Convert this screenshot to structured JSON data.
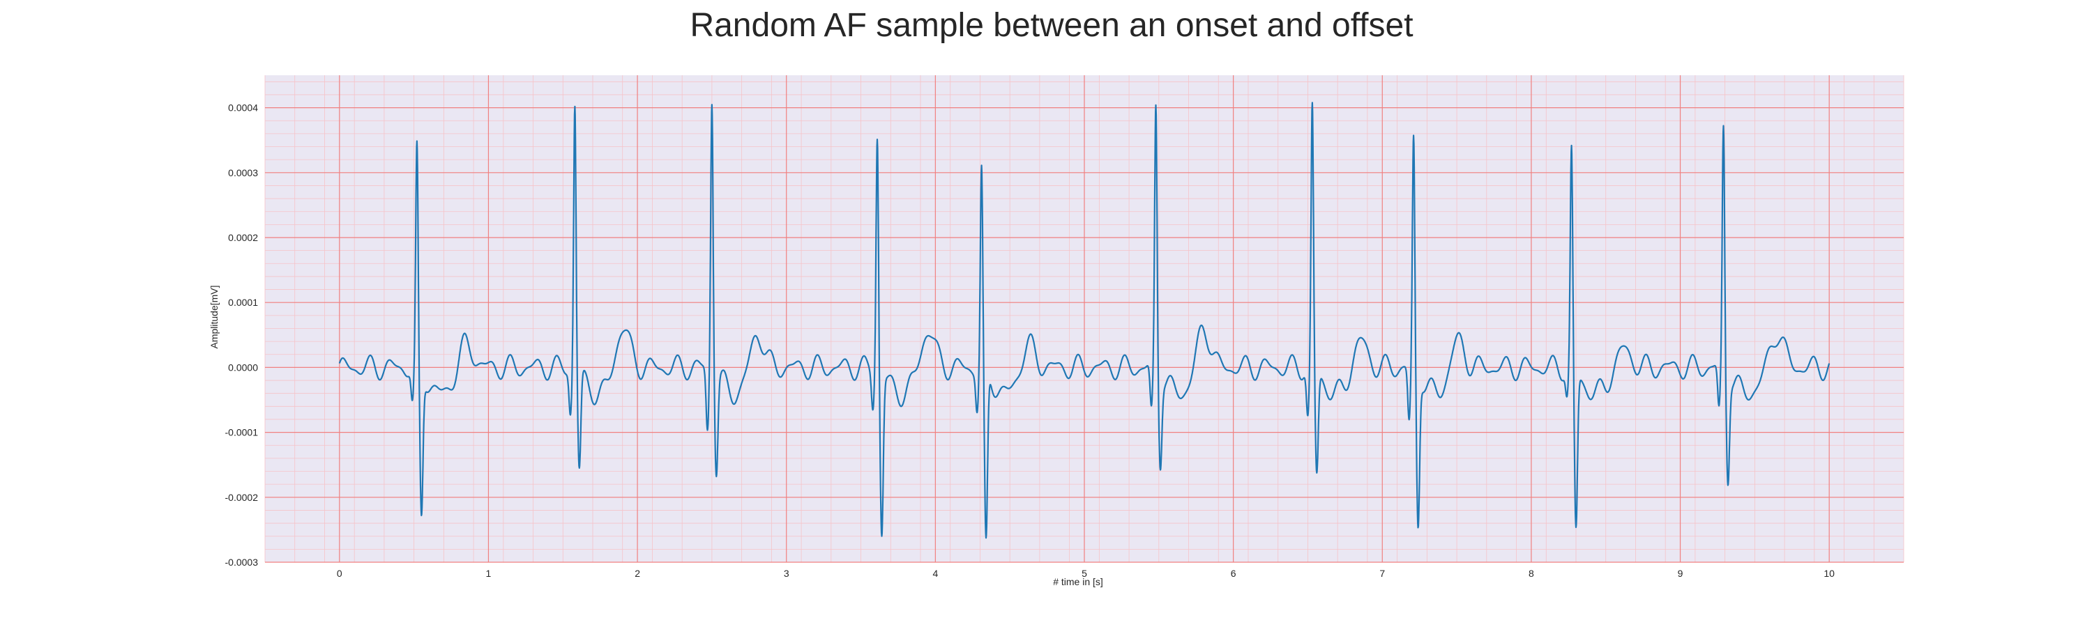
{
  "chart_data": {
    "type": "line",
    "title": "Random AF sample between an onset and offset",
    "xlabel": "# time in [s]",
    "ylabel": "Amplitude[mV]",
    "xlim": [
      -0.5,
      10.5
    ],
    "ylim": [
      -0.0003,
      0.00045
    ],
    "x_ticks": [
      0,
      1,
      2,
      3,
      4,
      5,
      6,
      7,
      8,
      9,
      10
    ],
    "x_tick_labels": [
      "0",
      "1",
      "2",
      "3",
      "4",
      "5",
      "6",
      "7",
      "8",
      "9",
      "10"
    ],
    "y_ticks": [
      -0.0003,
      -0.0002,
      -0.0001,
      0.0,
      0.0001,
      0.0002,
      0.0003,
      0.0004
    ],
    "y_tick_labels": [
      "-0.0003",
      "-0.0002",
      "-0.0001",
      "0.0000",
      "0.0001",
      "0.0002",
      "0.0003",
      "0.0004"
    ],
    "grid": "major and minor",
    "colors": {
      "line": "#1f77b4",
      "plot_background": "#eae7f3",
      "major_grid": "#f08080",
      "minor_grid": "#f6c3c8"
    },
    "beats": [
      {
        "t": 0.52,
        "r": 0.000337,
        "q": -5.2e-05,
        "s": -0.00022
      },
      {
        "t": 1.58,
        "r": 0.000413,
        "q": -6.5e-05,
        "s": -0.000148
      },
      {
        "t": 2.5,
        "r": 0.000422,
        "q": -9.5e-05,
        "s": -0.000146
      },
      {
        "t": 3.61,
        "r": 0.000366,
        "q": -5.5e-05,
        "s": -0.000245
      },
      {
        "t": 4.31,
        "r": 0.00031,
        "q": -5.8e-05,
        "s": -0.00027
      },
      {
        "t": 5.48,
        "r": 0.000407,
        "q": -7e-05,
        "s": -0.00013
      },
      {
        "t": 6.53,
        "r": 0.000406,
        "q": -7.5e-05,
        "s": -0.000157
      },
      {
        "t": 7.21,
        "r": 0.000355,
        "q": -8.5e-05,
        "s": -0.000232
      },
      {
        "t": 8.27,
        "r": 0.000338,
        "q": -4e-05,
        "s": -0.000242
      },
      {
        "t": 9.29,
        "r": 0.000375,
        "q": -6.8e-05,
        "s": -0.000155
      }
    ],
    "t_waves": [
      {
        "t": 0.85,
        "a": 4e-05
      },
      {
        "t": 1.9,
        "a": 6.6e-05
      },
      {
        "t": 2.8,
        "a": 6e-05
      },
      {
        "t": 3.95,
        "a": 6e-05
      },
      {
        "t": 4.62,
        "a": 4e-05
      },
      {
        "t": 5.8,
        "a": 6.5e-05
      },
      {
        "t": 6.85,
        "a": 4.5e-05
      },
      {
        "t": 7.5,
        "a": 5e-05
      },
      {
        "t": 8.62,
        "a": 3e-05
      },
      {
        "t": 9.65,
        "a": 5.5e-05
      }
    ]
  }
}
